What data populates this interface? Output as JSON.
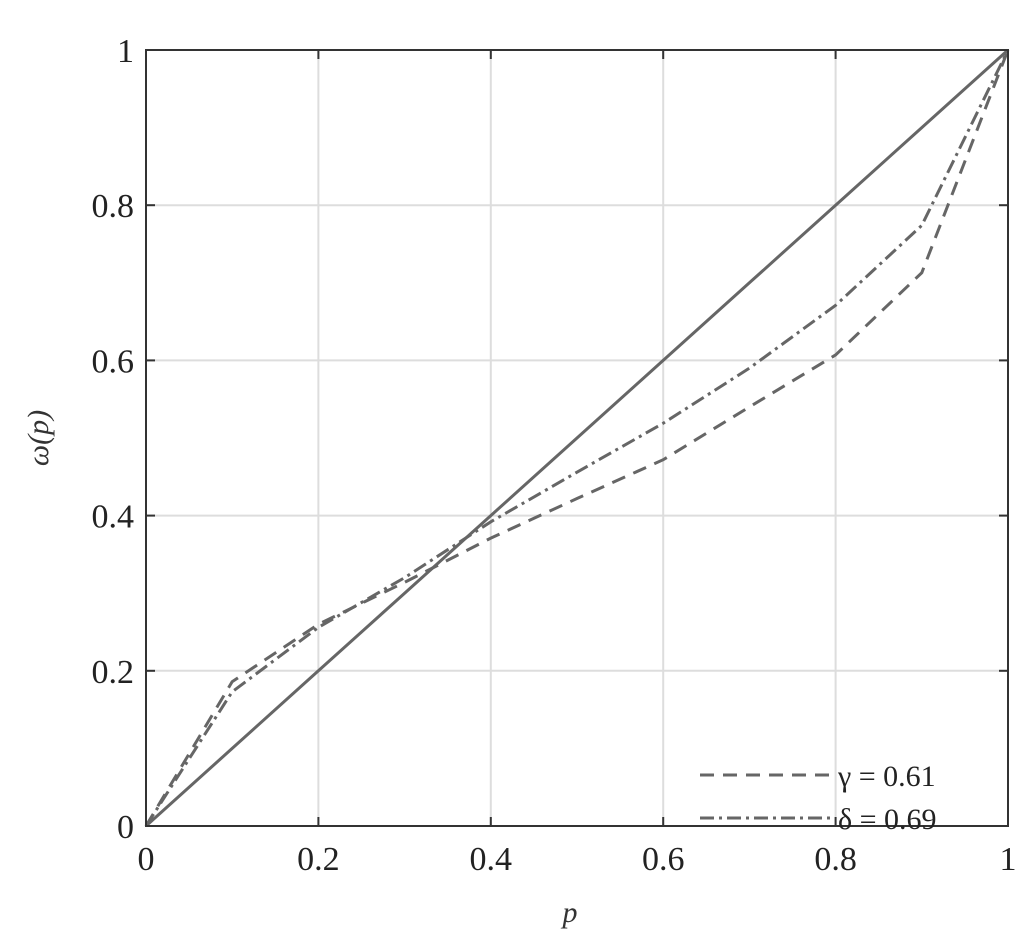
{
  "chart_data": {
    "type": "line",
    "title": "",
    "xlabel": "p",
    "ylabel": "ω(p)",
    "xlim": [
      0,
      1
    ],
    "ylim": [
      0,
      1
    ],
    "grid": true,
    "legend_placement": "bottom-right",
    "xticks": [
      "0",
      "0.2",
      "0.4",
      "0.6",
      "0.8",
      "1"
    ],
    "yticks": [
      "0",
      "0.2",
      "0.4",
      "0.6",
      "0.8",
      "1"
    ],
    "line_color": "#666666",
    "x": [
      0,
      0.1,
      0.2,
      0.3,
      0.4,
      0.5,
      0.6,
      0.7,
      0.8,
      0.9,
      1
    ],
    "series": [
      {
        "style": "solid",
        "values": [
          0,
          0.1,
          0.2,
          0.3,
          0.4,
          0.5,
          0.6,
          0.7,
          0.8,
          0.9,
          1
        ]
      },
      {
        "name": "γ = 0.61",
        "style": "dashed",
        "values": [
          0,
          0.186,
          0.26,
          0.314,
          0.371,
          0.422,
          0.472,
          0.54,
          0.607,
          0.713,
          1
        ]
      },
      {
        "name": "δ = 0.69",
        "style": "dashdot",
        "values": [
          0,
          0.173,
          0.256,
          0.32,
          0.392,
          0.456,
          0.519,
          0.59,
          0.671,
          0.774,
          1
        ]
      }
    ]
  }
}
